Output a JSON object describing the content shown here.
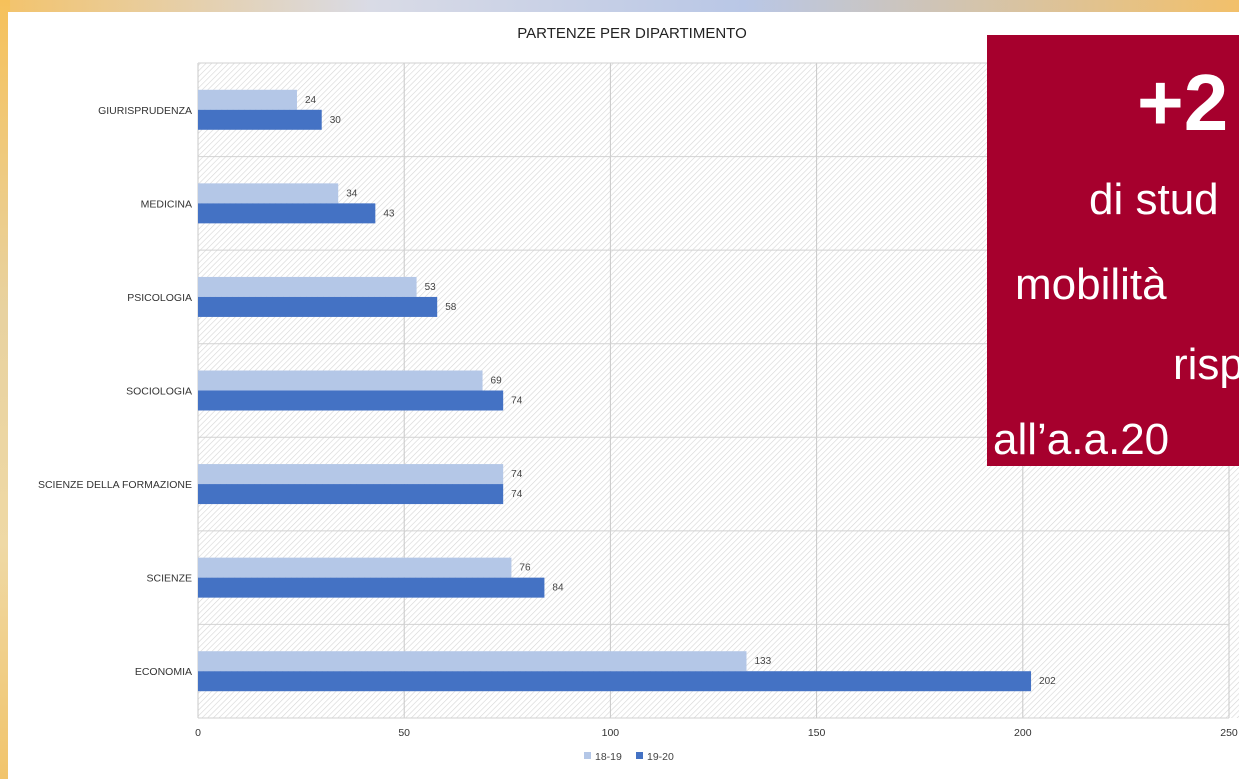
{
  "chart_data": {
    "type": "bar",
    "orientation": "horizontal",
    "title": "PARTENZE PER DIPARTIMENTO",
    "categories": [
      "GIURISPRUDENZA",
      "MEDICINA",
      "PSICOLOGIA",
      "SOCIOLOGIA",
      "SCIENZE DELLA FORMAZIONE",
      "SCIENZE",
      "ECONOMIA"
    ],
    "series": [
      {
        "name": "18-19",
        "color": "#b4c7e7",
        "values": [
          24,
          34,
          53,
          69,
          74,
          76,
          133
        ]
      },
      {
        "name": "19-20",
        "color": "#4472c4",
        "values": [
          30,
          43,
          58,
          74,
          74,
          84,
          202
        ]
      }
    ],
    "xlim": [
      0,
      250
    ],
    "xticks": [
      "0",
      "50",
      "100",
      "150",
      "200",
      "250"
    ],
    "grid": true,
    "legend_position": "bottom"
  },
  "callout": {
    "big_text": "+2",
    "lines": [
      "di stud",
      "mobilità",
      "risp",
      "all’a.a.20"
    ],
    "color": "#a6002d"
  }
}
